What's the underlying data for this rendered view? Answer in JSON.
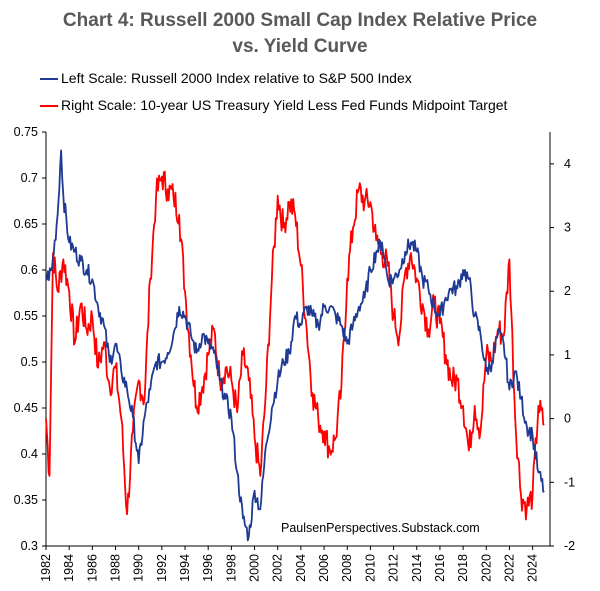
{
  "title_line1": "Chart 4: Russell 2000 Small Cap Index Relative Price",
  "title_line2": "vs. Yield Curve",
  "credit": "PaulsenPerspectives.Substack.com",
  "colors": {
    "left_series": "#1f3a93",
    "right_series": "#ff0000",
    "axis": "#000000"
  },
  "chart_data": {
    "type": "line",
    "title": "Chart 4: Russell 2000 Small Cap Index Relative Price vs. Yield Curve",
    "x_range": [
      1982,
      2025.5
    ],
    "x_ticks": [
      "1982",
      "1984",
      "1986",
      "1988",
      "1990",
      "1992",
      "1994",
      "1996",
      "1998",
      "2000",
      "2002",
      "2004",
      "2006",
      "2008",
      "2010",
      "2012",
      "2014",
      "2016",
      "2018",
      "2020",
      "2022",
      "2024"
    ],
    "left_axis": {
      "range": [
        0.3,
        0.75
      ],
      "ticks": [
        "0.75",
        "0.7",
        "0.65",
        "0.6",
        "0.55",
        "0.5",
        "0.45",
        "0.4",
        "0.35",
        "0.3"
      ]
    },
    "right_axis": {
      "range": [
        -2,
        4.5
      ],
      "ticks": [
        "4",
        "3",
        "2",
        "1",
        "0",
        "-1",
        "-2"
      ]
    },
    "series": [
      {
        "name": "Left Scale: Russell 2000 Index relative to S&P 500 Index",
        "axis": "left",
        "x": [
          1982,
          1982.5,
          1983,
          1983.3,
          1983.5,
          1984,
          1984.5,
          1985,
          1985.5,
          1986,
          1986.5,
          1987,
          1987.5,
          1988,
          1988.5,
          1989,
          1989.5,
          1990,
          1990.5,
          1991,
          1991.5,
          1992,
          1992.5,
          1993,
          1993.5,
          1994,
          1994.5,
          1995,
          1995.5,
          1996,
          1996.5,
          1997,
          1997.5,
          1998,
          1998.5,
          1999,
          1999.5,
          2000,
          2000.5,
          2001,
          2001.5,
          2002,
          2002.5,
          2003,
          2003.5,
          2004,
          2004.5,
          2005,
          2005.5,
          2006,
          2006.5,
          2007,
          2007.5,
          2008,
          2008.5,
          2009,
          2009.5,
          2010,
          2010.5,
          2011,
          2011.5,
          2012,
          2012.5,
          2013,
          2013.5,
          2014,
          2014.5,
          2015,
          2015.5,
          2016,
          2016.5,
          2017,
          2017.5,
          2018,
          2018.5,
          2019,
          2019.5,
          2020,
          2020.5,
          2021,
          2021.5,
          2022,
          2022.5,
          2023,
          2023.5,
          2024,
          2024.5,
          2025
        ],
        "values": [
          0.59,
          0.6,
          0.66,
          0.73,
          0.68,
          0.63,
          0.62,
          0.61,
          0.6,
          0.59,
          0.56,
          0.54,
          0.5,
          0.52,
          0.49,
          0.47,
          0.44,
          0.39,
          0.44,
          0.47,
          0.5,
          0.5,
          0.51,
          0.53,
          0.56,
          0.55,
          0.53,
          0.51,
          0.53,
          0.52,
          0.51,
          0.48,
          0.46,
          0.44,
          0.38,
          0.33,
          0.31,
          0.36,
          0.34,
          0.41,
          0.45,
          0.48,
          0.5,
          0.51,
          0.55,
          0.54,
          0.56,
          0.55,
          0.54,
          0.56,
          0.56,
          0.55,
          0.54,
          0.52,
          0.54,
          0.56,
          0.57,
          0.6,
          0.62,
          0.63,
          0.59,
          0.59,
          0.6,
          0.62,
          0.63,
          0.62,
          0.59,
          0.58,
          0.56,
          0.55,
          0.57,
          0.58,
          0.58,
          0.6,
          0.59,
          0.55,
          0.53,
          0.49,
          0.5,
          0.53,
          0.52,
          0.47,
          0.49,
          0.46,
          0.43,
          0.42,
          0.38,
          0.36
        ]
      },
      {
        "name": "Right Scale: 10-year US Treasury Yield Less Fed Funds Midpoint Target",
        "axis": "right",
        "x": [
          1982,
          1982.3,
          1982.6,
          1983,
          1983.5,
          1984,
          1984.5,
          1985,
          1985.5,
          1986,
          1986.5,
          1987,
          1987.5,
          1988,
          1988.5,
          1989,
          1989.5,
          1990,
          1990.5,
          1991,
          1991.5,
          1992,
          1992.5,
          1993,
          1993.5,
          1994,
          1994.5,
          1995,
          1995.5,
          1996,
          1996.5,
          1997,
          1997.5,
          1998,
          1998.5,
          1999,
          1999.5,
          2000,
          2000.5,
          2001,
          2001.5,
          2002,
          2002.5,
          2003,
          2003.5,
          2004,
          2004.5,
          2005,
          2005.5,
          2006,
          2006.5,
          2007,
          2007.5,
          2008,
          2008.5,
          2009,
          2009.5,
          2010,
          2010.5,
          2011,
          2011.5,
          2012,
          2012.5,
          2013,
          2013.5,
          2014,
          2014.5,
          2015,
          2015.5,
          2016,
          2016.5,
          2017,
          2017.5,
          2018,
          2018.5,
          2019,
          2019.5,
          2020,
          2020.5,
          2021,
          2021.5,
          2022,
          2022.5,
          2023,
          2023.5,
          2024,
          2024.5,
          2025
        ],
        "values": [
          0,
          -0.9,
          2.6,
          2.0,
          2.5,
          2.0,
          1.2,
          1.8,
          1.4,
          1.6,
          0.8,
          1.2,
          0.5,
          0.8,
          0.0,
          -1.5,
          -0.2,
          0.6,
          0.3,
          2.2,
          3.5,
          3.8,
          3.6,
          3.5,
          3.2,
          2.0,
          1.0,
          0.2,
          0.5,
          1.0,
          1.4,
          0.6,
          0.8,
          0.6,
          0.1,
          1.0,
          0.6,
          -0.3,
          -0.9,
          0.5,
          2.2,
          3.5,
          3.0,
          3.4,
          3.2,
          2.4,
          1.4,
          0.4,
          0.0,
          -0.2,
          -0.5,
          -0.3,
          0.5,
          2.2,
          3.0,
          3.6,
          3.4,
          3.4,
          2.8,
          2.6,
          2.4,
          1.6,
          1.3,
          2.3,
          2.6,
          2.2,
          1.8,
          1.4,
          1.8,
          1.5,
          1.0,
          0.6,
          0.6,
          0.2,
          -0.5,
          0.2,
          -0.2,
          1.0,
          0.9,
          1.4,
          1.3,
          2.5,
          0.0,
          -1.2,
          -1.4,
          -1.2,
          0.2,
          -0.1
        ]
      }
    ]
  }
}
